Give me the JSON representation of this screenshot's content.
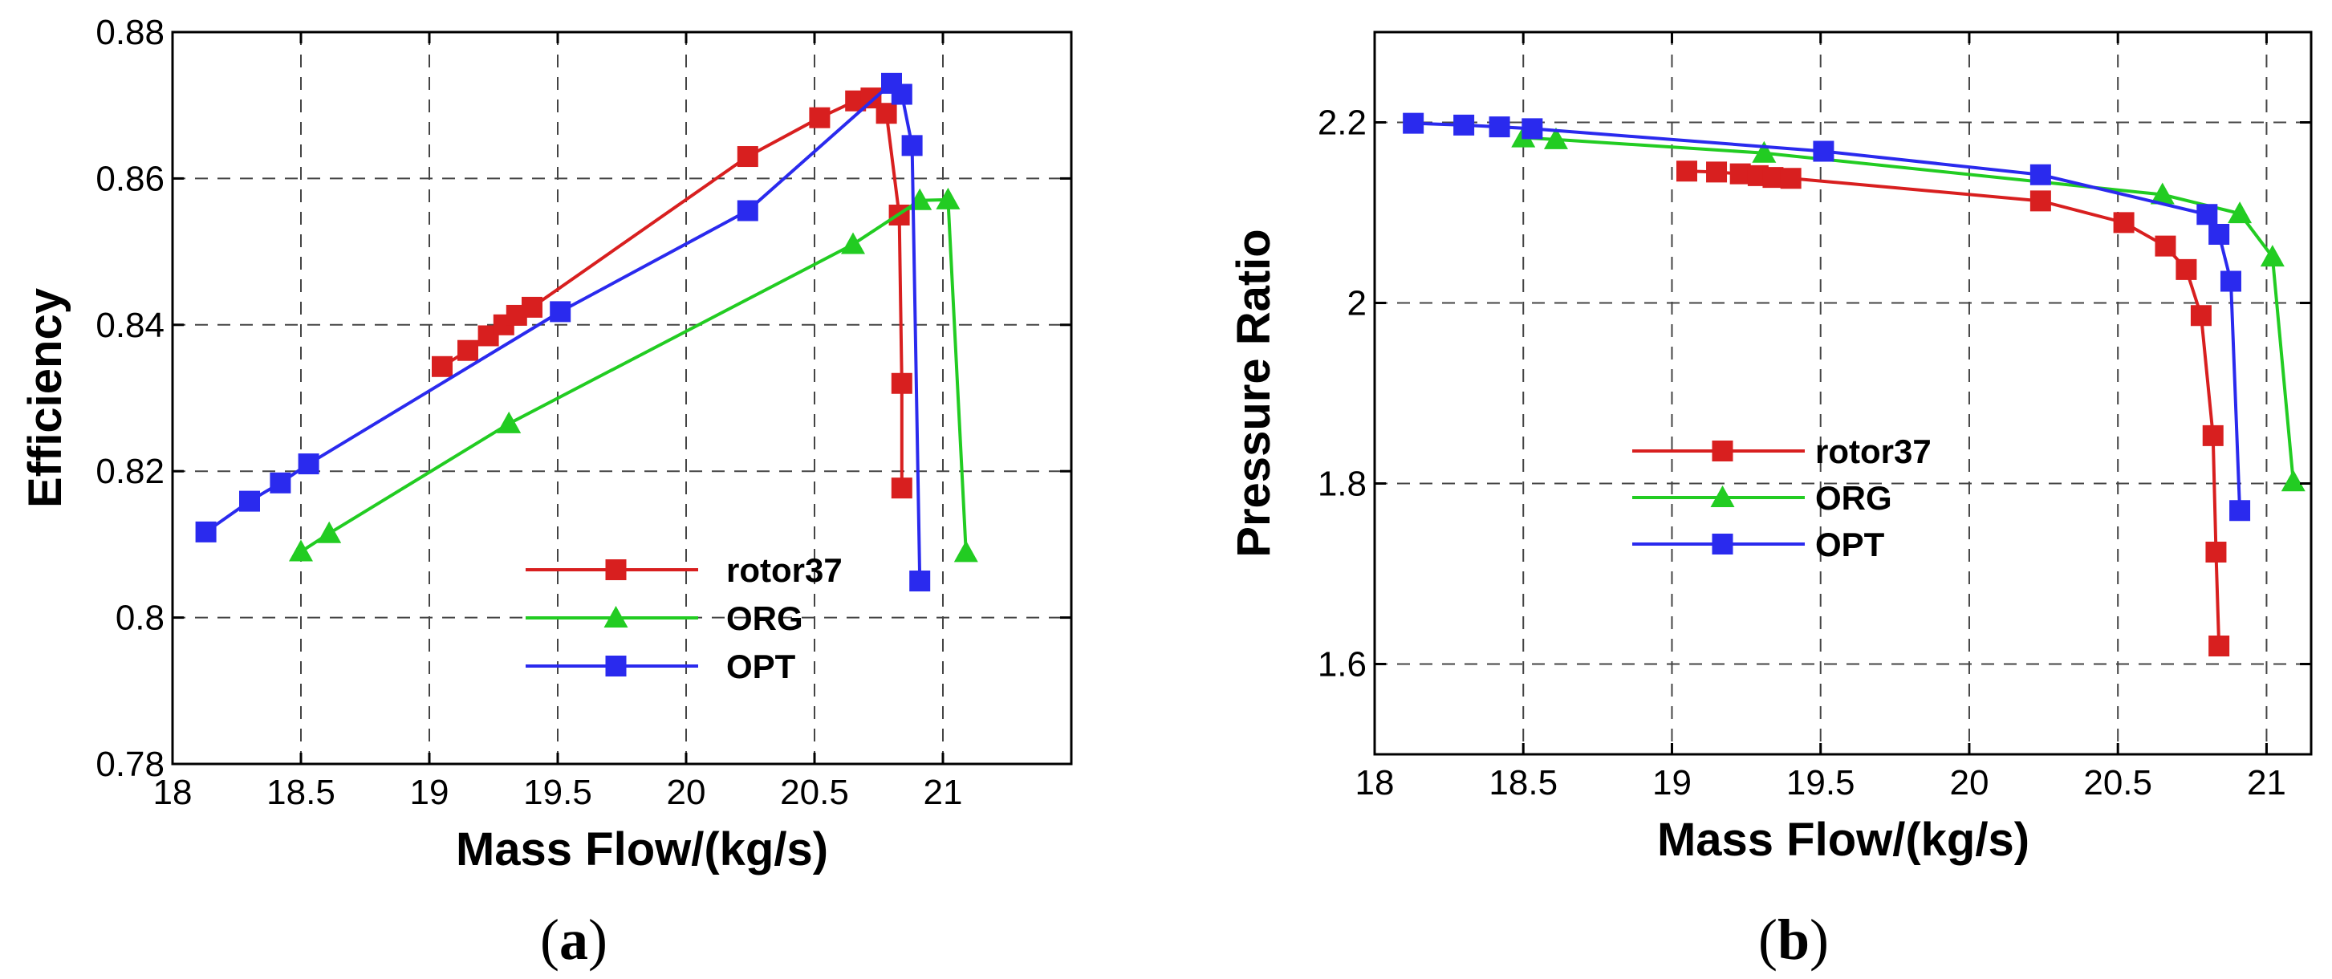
{
  "chart_data": [
    {
      "type": "line",
      "xlabel": "Mass Flow/(kg/s)",
      "ylabel": "Efficiency",
      "xlim": [
        18,
        21.5
      ],
      "ylim": [
        0.78,
        0.88
      ],
      "xticks": [
        18,
        18.5,
        19,
        19.5,
        20,
        20.5,
        21
      ],
      "xtick_labels": [
        "18",
        "18.5",
        "19",
        "19.5",
        "20",
        "20.5",
        "21"
      ],
      "yticks": [
        0.78,
        0.8,
        0.82,
        0.84,
        0.86,
        0.88
      ],
      "ytick_labels": [
        "0.78",
        "0.8",
        "0.82",
        "0.84",
        "0.86",
        "0.88"
      ],
      "grid": true,
      "legend_position": "lower-center",
      "caption": {
        "open": "(",
        "letter": "a",
        "close": ")"
      },
      "series": [
        {
          "name": "rotor37",
          "color": "#d81f1f",
          "marker": "square",
          "x": [
            19.05,
            19.15,
            19.23,
            19.29,
            19.34,
            19.4,
            20.24,
            20.52,
            20.66,
            20.72,
            20.78,
            20.83,
            20.84,
            20.84
          ],
          "y": [
            0.8343,
            0.8365,
            0.8385,
            0.84,
            0.8413,
            0.8424,
            0.863,
            0.8683,
            0.8706,
            0.871,
            0.8689,
            0.855,
            0.832,
            0.8177
          ]
        },
        {
          "name": "ORG",
          "color": "#22cc22",
          "marker": "triangle",
          "x": [
            18.5,
            18.61,
            19.31,
            20.65,
            20.91,
            21.02,
            21.09
          ],
          "y": [
            0.809,
            0.8115,
            0.8265,
            0.851,
            0.857,
            0.8571,
            0.8089
          ]
        },
        {
          "name": "OPT",
          "color": "#2a2aee",
          "marker": "square",
          "x": [
            18.13,
            18.3,
            18.42,
            18.53,
            19.51,
            20.24,
            20.8,
            20.84,
            20.88,
            20.91
          ],
          "y": [
            0.8117,
            0.8159,
            0.8184,
            0.821,
            0.8418,
            0.8556,
            0.873,
            0.8715,
            0.8645,
            0.805
          ]
        }
      ]
    },
    {
      "type": "line",
      "xlabel": "Mass Flow/(kg/s)",
      "ylabel": "Pressure Ratio",
      "xlim": [
        18,
        21.15
      ],
      "ylim": [
        1.5,
        2.3
      ],
      "xticks": [
        18,
        18.5,
        19,
        19.5,
        20,
        20.5,
        21
      ],
      "xtick_labels": [
        "18",
        "18.5",
        "19",
        "19.5",
        "20",
        "20.5",
        "21"
      ],
      "yticks": [
        1.6,
        1.8,
        2.0,
        2.2
      ],
      "ytick_labels": [
        "1.6",
        "1.8",
        "2",
        "2.2"
      ],
      "grid": true,
      "legend_position": "center",
      "caption": {
        "open": "(",
        "letter": "b",
        "close": ")"
      },
      "series": [
        {
          "name": "rotor37",
          "color": "#d81f1f",
          "marker": "square",
          "x": [
            19.05,
            19.15,
            19.23,
            19.29,
            19.34,
            19.4,
            20.24,
            20.52,
            20.66,
            20.73,
            20.78,
            20.82,
            20.83,
            20.84
          ],
          "y": [
            2.146,
            2.145,
            2.143,
            2.141,
            2.139,
            2.138,
            2.113,
            2.089,
            2.063,
            2.037,
            1.986,
            1.853,
            1.724,
            1.62
          ]
        },
        {
          "name": "ORG",
          "color": "#22cc22",
          "marker": "triangle",
          "x": [
            18.5,
            18.61,
            19.31,
            20.65,
            20.91,
            21.02,
            21.09
          ],
          "y": [
            2.183,
            2.181,
            2.166,
            2.12,
            2.099,
            2.051,
            1.802
          ]
        },
        {
          "name": "OPT",
          "color": "#2a2aee",
          "marker": "square",
          "x": [
            18.13,
            18.3,
            18.42,
            18.53,
            19.51,
            20.24,
            20.8,
            20.84,
            20.88,
            20.91
          ],
          "y": [
            2.199,
            2.197,
            2.195,
            2.193,
            2.168,
            2.142,
            2.098,
            2.076,
            2.024,
            1.77
          ]
        }
      ]
    }
  ]
}
